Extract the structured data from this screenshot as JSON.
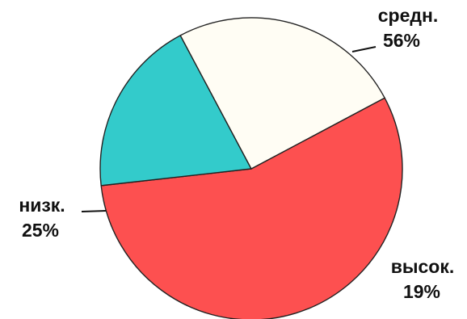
{
  "chart_data": {
    "type": "pie",
    "slices": [
      {
        "label": "средн.",
        "value": 56,
        "value_label": "56%",
        "color": "#fd5050"
      },
      {
        "label": "высок.",
        "value": 19,
        "value_label": "19%",
        "color": "#33cbcb"
      },
      {
        "label": "низк.",
        "value": 25,
        "value_label": "25%",
        "color": "#fffdf4"
      }
    ],
    "start_angle_deg": -28,
    "direction": "clockwise",
    "outline_color": "#222222"
  }
}
